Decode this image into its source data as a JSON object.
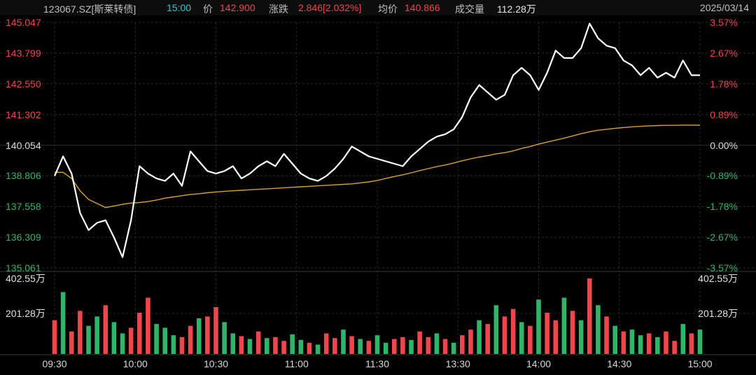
{
  "header": {
    "code": "123067.SZ[斯莱转债]",
    "time": "15:00",
    "price_label": "价",
    "price": "142.900",
    "change_label": "涨跌",
    "change": "2.846[2.032%]",
    "avg_label": "均价",
    "avg": "140.866",
    "volume_label": "成交量",
    "volume": "112.28万",
    "date": "2025/03/14"
  },
  "colors": {
    "up": "#f0454a",
    "down": "#2fb56a",
    "price_line": "#ffffff",
    "avg_line": "#d9a32a",
    "grid": "#2a2a2a",
    "background": "#000000"
  },
  "chart_data": {
    "type": "line",
    "y_left_ticks": [
      "145.047",
      "143.799",
      "142.550",
      "141.302",
      "140.054",
      "138.806",
      "137.558",
      "136.309",
      "135.061"
    ],
    "y_right_ticks": [
      "3.57%",
      "2.67%",
      "1.78%",
      "0.89%",
      "0.00%",
      "-0.89%",
      "-1.78%",
      "-2.67%",
      "-3.57%"
    ],
    "ylim": [
      135.061,
      145.047
    ],
    "x_ticks": [
      "09:30",
      "10:00",
      "10:30",
      "11:00",
      "11:30",
      "13:30",
      "14:00",
      "14:30",
      "15:00"
    ],
    "volume_ticks": [
      "402.55万",
      "201.28万"
    ],
    "volume_max": 402.55,
    "series": [
      {
        "name": "价",
        "kind": "price",
        "values": [
          138.8,
          139.6,
          138.9,
          137.3,
          136.6,
          136.9,
          137.0,
          136.3,
          135.5,
          137.0,
          139.2,
          138.9,
          138.7,
          138.6,
          138.9,
          138.4,
          139.8,
          139.4,
          139.0,
          138.9,
          139.0,
          139.2,
          138.7,
          138.9,
          139.2,
          139.4,
          139.2,
          139.7,
          139.3,
          138.9,
          138.7,
          138.6,
          138.8,
          139.1,
          139.5,
          140.0,
          139.8,
          139.6,
          139.5,
          139.4,
          139.3,
          139.2,
          139.6,
          139.9,
          140.2,
          140.4,
          140.5,
          140.7,
          141.2,
          142.0,
          142.5,
          142.2,
          141.9,
          142.1,
          142.9,
          143.2,
          142.9,
          142.3,
          143.0,
          143.9,
          143.6,
          143.6,
          144.0,
          145.0,
          144.4,
          144.1,
          144.0,
          143.5,
          143.3,
          142.9,
          143.2,
          142.8,
          143.0,
          142.8,
          143.5,
          142.9,
          142.9
        ]
      },
      {
        "name": "均价",
        "kind": "avg",
        "values": [
          138.95,
          138.95,
          138.7,
          138.2,
          137.85,
          137.68,
          137.52,
          137.58,
          137.65,
          137.7,
          137.72,
          137.76,
          137.82,
          137.9,
          137.95,
          138.0,
          138.05,
          138.08,
          138.12,
          138.15,
          138.18,
          138.2,
          138.22,
          138.24,
          138.26,
          138.28,
          138.3,
          138.32,
          138.34,
          138.36,
          138.38,
          138.4,
          138.42,
          138.44,
          138.46,
          138.48,
          138.52,
          138.56,
          138.62,
          138.7,
          138.78,
          138.85,
          138.93,
          139.02,
          139.1,
          139.18,
          139.25,
          139.33,
          139.42,
          139.5,
          139.57,
          139.63,
          139.7,
          139.75,
          139.82,
          139.92,
          140.0,
          140.1,
          140.18,
          140.26,
          140.34,
          140.43,
          140.52,
          140.6,
          140.66,
          140.7,
          140.74,
          140.77,
          140.8,
          140.82,
          140.84,
          140.85,
          140.86,
          140.86,
          140.87,
          140.87,
          140.866
        ]
      },
      {
        "name": "成交量",
        "kind": "volume",
        "values": [
          180,
          330,
          120,
          230,
          150,
          200,
          260,
          170,
          110,
          140,
          220,
          300,
          160,
          140,
          100,
          90,
          150,
          190,
          200,
          250,
          170,
          110,
          95,
          80,
          120,
          85,
          90,
          70,
          105,
          75,
          60,
          50,
          110,
          85,
          130,
          95,
          80,
          70,
          100,
          60,
          80,
          90,
          75,
          120,
          90,
          110,
          80,
          60,
          100,
          130,
          180,
          160,
          260,
          200,
          240,
          170,
          150,
          290,
          220,
          180,
          300,
          230,
          180,
          402.55,
          260,
          200,
          150,
          120,
          130,
          100,
          110,
          90,
          120,
          70,
          160,
          110,
          130
        ],
        "direction": [
          "u",
          "d",
          "u",
          "u",
          "d",
          "d",
          "u",
          "d",
          "d",
          "u",
          "u",
          "u",
          "d",
          "d",
          "d",
          "u",
          "u",
          "d",
          "u",
          "u",
          "d",
          "d",
          "u",
          "d",
          "u",
          "d",
          "u",
          "u",
          "d",
          "d",
          "u",
          "d",
          "u",
          "u",
          "d",
          "u",
          "d",
          "u",
          "d",
          "d",
          "u",
          "u",
          "d",
          "u",
          "u",
          "d",
          "u",
          "d",
          "u",
          "u",
          "d",
          "u",
          "d",
          "u",
          "u",
          "d",
          "u",
          "d",
          "u",
          "u",
          "d",
          "u",
          "d",
          "u",
          "d",
          "u",
          "d",
          "u",
          "d",
          "d",
          "u",
          "d",
          "u",
          "u",
          "d",
          "u",
          "d"
        ]
      }
    ]
  }
}
